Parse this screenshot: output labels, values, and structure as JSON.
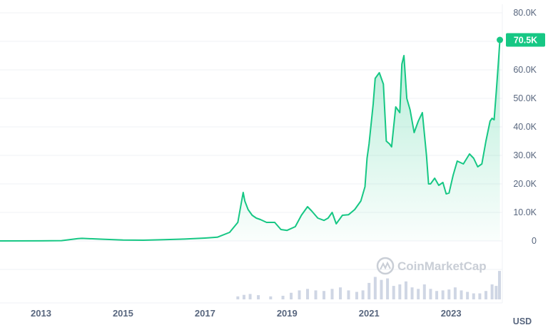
{
  "chart_data": {
    "type": "area",
    "title": "",
    "xlabel": "",
    "ylabel": "",
    "currency": "USD",
    "last_price_label": "70.5K",
    "watermark": "CoinMarketCap",
    "ylim": [
      0,
      80000
    ],
    "y_ticks": [
      {
        "value": 80000,
        "label": "80.0K"
      },
      {
        "value": 60000,
        "label": "60.0K"
      },
      {
        "value": 50000,
        "label": "50.0K"
      },
      {
        "value": 40000,
        "label": "40.0K"
      },
      {
        "value": 30000,
        "label": "30.0K"
      },
      {
        "value": 20000,
        "label": "20.0K"
      },
      {
        "value": 10000,
        "label": "10.0K"
      },
      {
        "value": 0,
        "label": "0"
      }
    ],
    "xlim": [
      2012.0,
      2024.25
    ],
    "x_ticks": [
      {
        "value": 2013.0,
        "label": "2013"
      },
      {
        "value": 2015.0,
        "label": "2015"
      },
      {
        "value": 2017.0,
        "label": "2017"
      },
      {
        "value": 2019.0,
        "label": "2019"
      },
      {
        "value": 2021.0,
        "label": "2021"
      },
      {
        "value": 2023.0,
        "label": "2023"
      }
    ],
    "series": [
      {
        "values_note": "price in USD by decimal year",
        "x": [
          2012.0,
          2013.0,
          2013.5,
          2013.9,
          2014.0,
          2014.5,
          2015.0,
          2015.5,
          2016.0,
          2016.5,
          2017.0,
          2017.3,
          2017.6,
          2017.8,
          2017.93,
          2017.97,
          2018.05,
          2018.15,
          2018.25,
          2018.35,
          2018.5,
          2018.7,
          2018.85,
          2019.0,
          2019.2,
          2019.35,
          2019.5,
          2019.6,
          2019.75,
          2019.9,
          2020.0,
          2020.1,
          2020.2,
          2020.35,
          2020.5,
          2020.65,
          2020.8,
          2020.9,
          2020.95,
          2021.0,
          2021.1,
          2021.15,
          2021.25,
          2021.35,
          2021.42,
          2021.5,
          2021.55,
          2021.65,
          2021.75,
          2021.8,
          2021.85,
          2021.92,
          2022.0,
          2022.1,
          2022.2,
          2022.3,
          2022.4,
          2022.45,
          2022.5,
          2022.6,
          2022.7,
          2022.8,
          2022.88,
          2022.95,
          2023.05,
          2023.15,
          2023.3,
          2023.45,
          2023.55,
          2023.65,
          2023.75,
          2023.85,
          2023.95,
          2024.0,
          2024.05,
          2024.1,
          2024.15,
          2024.19
        ],
        "values": [
          5,
          13,
          100,
          800,
          900,
          600,
          300,
          250,
          430,
          650,
          1000,
          1300,
          3000,
          6500,
          17000,
          14000,
          11000,
          9000,
          8000,
          7500,
          6500,
          6500,
          4000,
          3700,
          5000,
          9000,
          12000,
          10500,
          8000,
          7200,
          8000,
          10000,
          6000,
          9000,
          9200,
          11000,
          14000,
          19000,
          29000,
          34000,
          48000,
          57000,
          59000,
          55000,
          35000,
          34000,
          33000,
          47000,
          45000,
          62000,
          65000,
          50000,
          46000,
          38000,
          42000,
          45000,
          30000,
          20000,
          20000,
          22000,
          19500,
          20500,
          16500,
          16800,
          23000,
          28000,
          27000,
          30500,
          29000,
          26000,
          27000,
          35000,
          42000,
          43000,
          42500,
          52000,
          62000,
          70500
        ]
      }
    ],
    "volume_note": "daily trading volume bars in lower panel, unlabeled",
    "volume": {
      "x": [
        2017.8,
        2017.95,
        2018.1,
        2018.3,
        2018.6,
        2018.9,
        2019.1,
        2019.3,
        2019.5,
        2019.7,
        2019.9,
        2020.1,
        2020.3,
        2020.5,
        2020.7,
        2020.85,
        2021.0,
        2021.15,
        2021.3,
        2021.45,
        2021.6,
        2021.75,
        2021.9,
        2022.05,
        2022.2,
        2022.35,
        2022.5,
        2022.65,
        2022.8,
        2022.95,
        2023.1,
        2023.25,
        2023.4,
        2023.55,
        2023.7,
        2023.85,
        2024.0,
        2024.1,
        2024.18
      ],
      "values": [
        0.1,
        0.15,
        0.18,
        0.14,
        0.1,
        0.12,
        0.22,
        0.3,
        0.35,
        0.3,
        0.28,
        0.35,
        0.4,
        0.3,
        0.25,
        0.3,
        0.55,
        0.75,
        0.65,
        0.7,
        0.45,
        0.5,
        0.6,
        0.4,
        0.35,
        0.5,
        0.35,
        0.28,
        0.3,
        0.33,
        0.4,
        0.3,
        0.25,
        0.2,
        0.2,
        0.28,
        0.5,
        0.45,
        0.95
      ]
    },
    "colors": {
      "line": "#16c784",
      "fill_top": "#16c784",
      "badge": "#16c784",
      "grid": "#eff2f5",
      "axis_text": "#58667e",
      "volume": "#cfd6e4",
      "watermark": "#c9ced6"
    },
    "grid": true,
    "legend": "none"
  }
}
